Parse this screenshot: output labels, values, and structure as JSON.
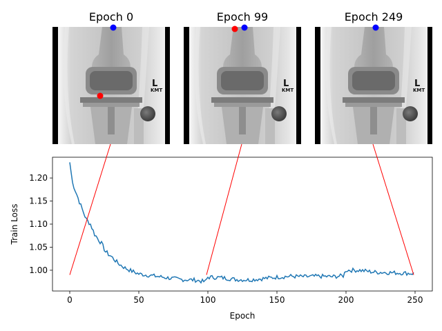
{
  "panels": [
    {
      "title": "Epoch 0",
      "epoch": 0,
      "red_landmark": "mid-knee",
      "blue_landmark": "top"
    },
    {
      "title": "Epoch 99",
      "epoch": 99,
      "red_landmark": "top",
      "blue_landmark": "top"
    },
    {
      "title": "Epoch 249",
      "epoch": 249,
      "red_landmark": "top",
      "blue_landmark": "top"
    }
  ],
  "xray_markers": {
    "side": "L",
    "initials": "KMT"
  },
  "colors": {
    "loss_line": "#1f77b4",
    "connector": "#ff0000",
    "pred_point": "#ff0000",
    "target_point": "#0000ff"
  },
  "chart_data": {
    "type": "line",
    "xlabel": "Epoch",
    "ylabel": "Train Loss",
    "xlim": [
      -12.5,
      262.5
    ],
    "ylim": [
      0.955,
      1.245
    ],
    "xticks": [
      0,
      50,
      100,
      150,
      200,
      250
    ],
    "yticks": [
      1.0,
      1.05,
      1.1,
      1.15,
      1.2
    ],
    "grid": false,
    "key_points": [
      [
        0,
        1.234
      ],
      [
        2,
        1.19
      ],
      [
        5,
        1.165
      ],
      [
        8,
        1.14
      ],
      [
        10,
        1.125
      ],
      [
        12,
        1.11
      ],
      [
        15,
        1.1
      ],
      [
        18,
        1.078
      ],
      [
        20,
        1.07
      ],
      [
        23,
        1.058
      ],
      [
        26,
        1.04
      ],
      [
        30,
        1.03
      ],
      [
        35,
        1.015
      ],
      [
        40,
        1.005
      ],
      [
        45,
        0.998
      ],
      [
        50,
        0.992
      ],
      [
        55,
        0.99
      ],
      [
        60,
        0.988
      ],
      [
        70,
        0.984
      ],
      [
        80,
        0.98
      ],
      [
        90,
        0.979
      ],
      [
        98,
        0.975
      ],
      [
        100,
        0.985
      ],
      [
        110,
        0.984
      ],
      [
        120,
        0.98
      ],
      [
        130,
        0.979
      ],
      [
        140,
        0.982
      ],
      [
        150,
        0.985
      ],
      [
        160,
        0.987
      ],
      [
        170,
        0.986
      ],
      [
        180,
        0.987
      ],
      [
        190,
        0.986
      ],
      [
        198,
        0.988
      ],
      [
        200,
        1.0
      ],
      [
        210,
        1.0
      ],
      [
        220,
        0.996
      ],
      [
        230,
        0.995
      ],
      [
        240,
        0.994
      ],
      [
        249,
        0.993
      ]
    ],
    "connector_endpoints": [
      {
        "epoch": 0,
        "loss": 0.99
      },
      {
        "epoch": 99,
        "loss": 0.99
      },
      {
        "epoch": 249,
        "loss": 0.99
      }
    ]
  }
}
